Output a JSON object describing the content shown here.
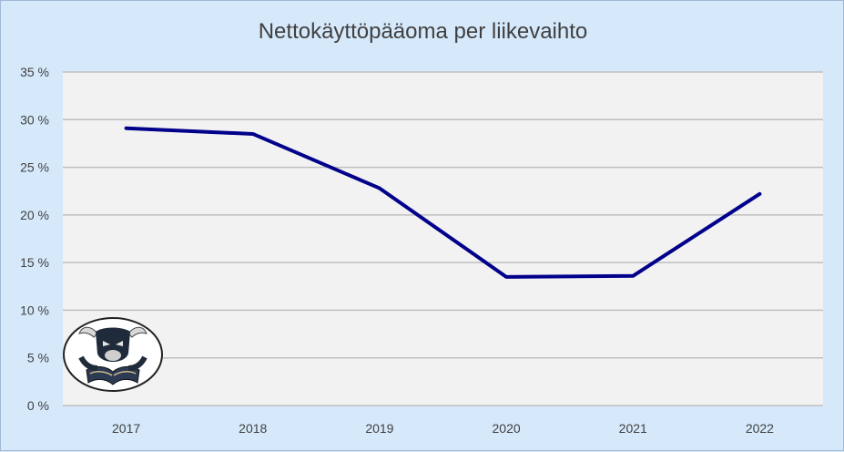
{
  "chart_data": {
    "type": "line",
    "title": "Nettokäyttöpääoma per liikevaihto",
    "xlabel": "",
    "ylabel": "",
    "categories": [
      "2017",
      "2018",
      "2019",
      "2020",
      "2021",
      "2022"
    ],
    "series": [
      {
        "values": [
          29.1,
          28.5,
          22.8,
          13.5,
          13.6,
          22.2
        ]
      }
    ],
    "ylim": [
      0,
      35
    ],
    "yticks": [
      0,
      5,
      10,
      15,
      20,
      25,
      30,
      35
    ],
    "ytick_labels": [
      "0 %",
      "5 %",
      "10 %",
      "15 %",
      "20 %",
      "25 %",
      "30 %",
      "35 %"
    ],
    "grid": true,
    "legend": "none",
    "colors": {
      "line": "#00008b",
      "plot_background": "#f2f2f2",
      "chart_background": "#d6e9fb",
      "gridline": "#bfbfbf"
    }
  },
  "logo": {
    "icon": "bull-reading-book-icon"
  }
}
